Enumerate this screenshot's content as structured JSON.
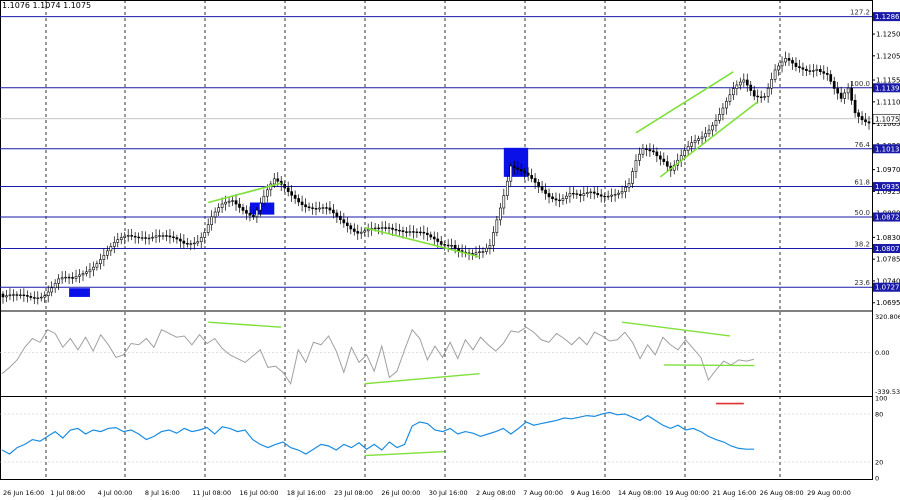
{
  "header": {
    "ohlc_text": "1.1076 1.1074 1.1075"
  },
  "colors": {
    "background": "#ffffff",
    "candle": "#000000",
    "fib_line": "#1a1aa8",
    "trend_line": "#7fe03a",
    "zone_fill": "#0a10e8",
    "cci_line": "#a0a0a0",
    "rsi_line": "#1a8ce0",
    "rsi_marker": "#e03030",
    "grid": "#000000",
    "current_price_line": "#b0b0b0"
  },
  "chart_data": [
    {
      "type": "candlestick",
      "symbol_ohlc": "1.1076 1.1074 1.1075",
      "ylim": [
        1.068,
        1.131
      ],
      "price_ticks": [
        "1.1285",
        "1.1250",
        "1.1205",
        "1.1155",
        "1.1110",
        "1.1065",
        "1.1020",
        "1.0970",
        "1.0925",
        "1.0880",
        "1.0830",
        "1.0785",
        "1.0740",
        "1.0695"
      ],
      "x_labels": [
        "26 Jun 16:00",
        "1 Jul 08:00",
        "4 Jul 00:00",
        "8 Jul 16:00",
        "11 Jul 08:00",
        "16 Jul 00:00",
        "18 Jul 16:00",
        "23 Jul 08:00",
        "26 Jul 00:00",
        "30 Jul 16:00",
        "2 Aug 08:00",
        "7 Aug 00:00",
        "9 Aug 16:00",
        "14 Aug 08:00",
        "19 Aug 00:00",
        "21 Aug 16:00",
        "26 Aug 08:00",
        "29 Aug 00:00"
      ],
      "current_price": "1.1075",
      "fib_levels": [
        {
          "pct": "127.2",
          "price": "1.1286"
        },
        {
          "pct": "100.0",
          "price": "1.1139"
        },
        {
          "pct": "76.4",
          "price": "1.1013"
        },
        {
          "pct": "61.8",
          "price": "1.0935"
        },
        {
          "pct": "50.0",
          "price": "1.0872"
        },
        {
          "pct": "38.2",
          "price": "1.0807"
        },
        {
          "pct": "23.6",
          "price": "1.0727"
        }
      ],
      "close_path": [
        [
          0,
          1.0707
        ],
        [
          4,
          1.0702
        ],
        [
          8,
          1.0708
        ],
        [
          12,
          1.0718
        ],
        [
          16,
          1.074
        ],
        [
          20,
          1.0738
        ],
        [
          24,
          1.0765
        ],
        [
          28,
          1.079
        ],
        [
          32,
          1.0812
        ],
        [
          36,
          1.083
        ],
        [
          40,
          1.0838
        ],
        [
          44,
          1.0835
        ],
        [
          48,
          1.0822
        ],
        [
          52,
          1.0818
        ],
        [
          56,
          1.083
        ],
        [
          58,
          1.0845
        ],
        [
          60,
          1.087
        ],
        [
          63,
          1.089
        ],
        [
          66,
          1.0903
        ],
        [
          69,
          1.0893
        ],
        [
          72,
          1.088
        ],
        [
          75,
          1.0912
        ],
        [
          78,
          1.0942
        ],
        [
          81,
          1.093
        ],
        [
          84,
          1.0918
        ],
        [
          87,
          1.09
        ],
        [
          90,
          1.0885
        ],
        [
          93,
          1.0882
        ],
        [
          96,
          1.0872
        ],
        [
          99,
          1.0862
        ],
        [
          102,
          1.0845
        ],
        [
          105,
          1.0842
        ],
        [
          108,
          1.084
        ],
        [
          111,
          1.0848
        ],
        [
          114,
          1.0852
        ],
        [
          117,
          1.0848
        ],
        [
          120,
          1.0836
        ],
        [
          123,
          1.0822
        ],
        [
          126,
          1.0815
        ],
        [
          129,
          1.0822
        ],
        [
          132,
          1.0805
        ],
        [
          135,
          1.079
        ],
        [
          138,
          1.0792
        ],
        [
          140,
          1.081
        ],
        [
          142,
          1.087
        ],
        [
          144,
          1.0925
        ],
        [
          146,
          1.0985
        ],
        [
          148,
          1.0972
        ],
        [
          151,
          1.095
        ],
        [
          154,
          1.0928
        ],
        [
          157,
          1.0918
        ],
        [
          160,
          1.0915
        ],
        [
          163,
          1.0922
        ],
        [
          166,
          1.0908
        ],
        [
          169,
          1.0918
        ],
        [
          172,
          1.092
        ],
        [
          175,
          1.0926
        ],
        [
          178,
          1.0925
        ],
        [
          180,
          1.0935
        ],
        [
          182,
          1.098
        ],
        [
          184,
          1.1008
        ],
        [
          187,
          1.1012
        ],
        [
          190,
          1.0995
        ],
        [
          192,
          1.0972
        ],
        [
          195,
          1.0992
        ],
        [
          198,
          1.1018
        ],
        [
          201,
          1.104
        ],
        [
          204,
          1.107
        ],
        [
          207,
          1.11
        ],
        [
          210,
          1.113
        ],
        [
          213,
          1.1148
        ],
        [
          216,
          1.1125
        ],
        [
          219,
          1.113
        ],
        [
          222,
          1.1178
        ],
        [
          225,
          1.1192
        ],
        [
          228,
          1.1176
        ],
        [
          231,
          1.1178
        ],
        [
          234,
          1.1186
        ],
        [
          237,
          1.1168
        ],
        [
          239,
          1.1132
        ],
        [
          241,
          1.1108
        ],
        [
          243,
          1.1132
        ],
        [
          245,
          1.1088
        ],
        [
          247,
          1.108
        ],
        [
          249,
          1.1075
        ]
      ],
      "blue_zones": [
        {
          "x": [
            19,
            25
          ],
          "price": [
            1.0707,
            1.0725
          ]
        },
        {
          "x": [
            71,
            78
          ],
          "price": [
            1.0877,
            1.0902
          ]
        },
        {
          "x": [
            144,
            151
          ],
          "price": [
            1.0955,
            1.1015
          ]
        }
      ],
      "trend_lines": [
        [
          [
            59,
            1.0902
          ],
          [
            80,
            1.0942
          ]
        ],
        [
          [
            104,
            1.085
          ],
          [
            137,
            1.079
          ]
        ],
        [
          [
            182,
            1.1046
          ],
          [
            210,
            1.1172
          ]
        ],
        [
          [
            189,
            1.0955
          ],
          [
            217,
            1.111
          ]
        ]
      ]
    },
    {
      "type": "line",
      "indicator": "CCI",
      "top_label": "320.8062",
      "mid_label": "0.00",
      "bottom_label": "-339.532",
      "ylim": [
        -339.532,
        320.8062
      ],
      "series": [
        {
          "values": [
            -170,
            -120,
            -60,
            40,
            110,
            80,
            180,
            150,
            40,
            110,
            20,
            120,
            10,
            140,
            60,
            -40,
            -20,
            70,
            60,
            110,
            40,
            180,
            150,
            120,
            130,
            60,
            140,
            70,
            110,
            30,
            -20,
            -50,
            -80,
            -30,
            20,
            -120,
            -110,
            -160,
            -250,
            20,
            -80,
            80,
            60,
            130,
            10,
            -160,
            40,
            -80,
            -20,
            -150,
            50,
            -200,
            -150,
            20,
            180,
            110,
            -60,
            50,
            -40,
            80,
            -50,
            100,
            20,
            120,
            60,
            10,
            70,
            170,
            160,
            200,
            160,
            100,
            80,
            150,
            110,
            60,
            120,
            60,
            160,
            130,
            90,
            100,
            160,
            80,
            -50,
            60,
            -20,
            120,
            60,
            20,
            100,
            30,
            -40,
            -220,
            -140,
            -70,
            -100,
            -60,
            -70,
            -55
          ]
        }
      ],
      "trend_lines": [
        [
          [
            59,
            240
          ],
          [
            80,
            200
          ]
        ],
        [
          [
            104,
            -250
          ],
          [
            137,
            -170
          ]
        ],
        [
          [
            178,
            240
          ],
          [
            209,
            130
          ]
        ],
        [
          [
            190,
            -100
          ],
          [
            216,
            -105
          ]
        ]
      ]
    },
    {
      "type": "line",
      "indicator": "RSI",
      "tick_labels": [
        "100",
        "80",
        "20",
        "0"
      ],
      "ylim": [
        0,
        100
      ],
      "series": [
        {
          "values": [
            35,
            30,
            38,
            42,
            48,
            46,
            52,
            58,
            50,
            60,
            62,
            55,
            60,
            58,
            62,
            63,
            58,
            60,
            55,
            48,
            52,
            58,
            60,
            56,
            62,
            58,
            60,
            63,
            55,
            64,
            62,
            58,
            60,
            48,
            42,
            38,
            42,
            45,
            38,
            35,
            30,
            36,
            42,
            40,
            35,
            42,
            38,
            44,
            36,
            42,
            35,
            45,
            38,
            42,
            65,
            70,
            68,
            60,
            58,
            62,
            55,
            58,
            56,
            52,
            55,
            58,
            62,
            55,
            62,
            70,
            66,
            68,
            70,
            72,
            75,
            74,
            76,
            78,
            77,
            80,
            82,
            79,
            80,
            76,
            72,
            78,
            72,
            66,
            62,
            66,
            60,
            62,
            58,
            52,
            48,
            45,
            40,
            37,
            36,
            36
          ]
        }
      ],
      "trend_lines": [
        [
          [
            104,
            28
          ],
          [
            127,
            33
          ]
        ]
      ],
      "marker": [
        [
          205,
          93
        ],
        [
          213,
          93
        ]
      ]
    }
  ]
}
